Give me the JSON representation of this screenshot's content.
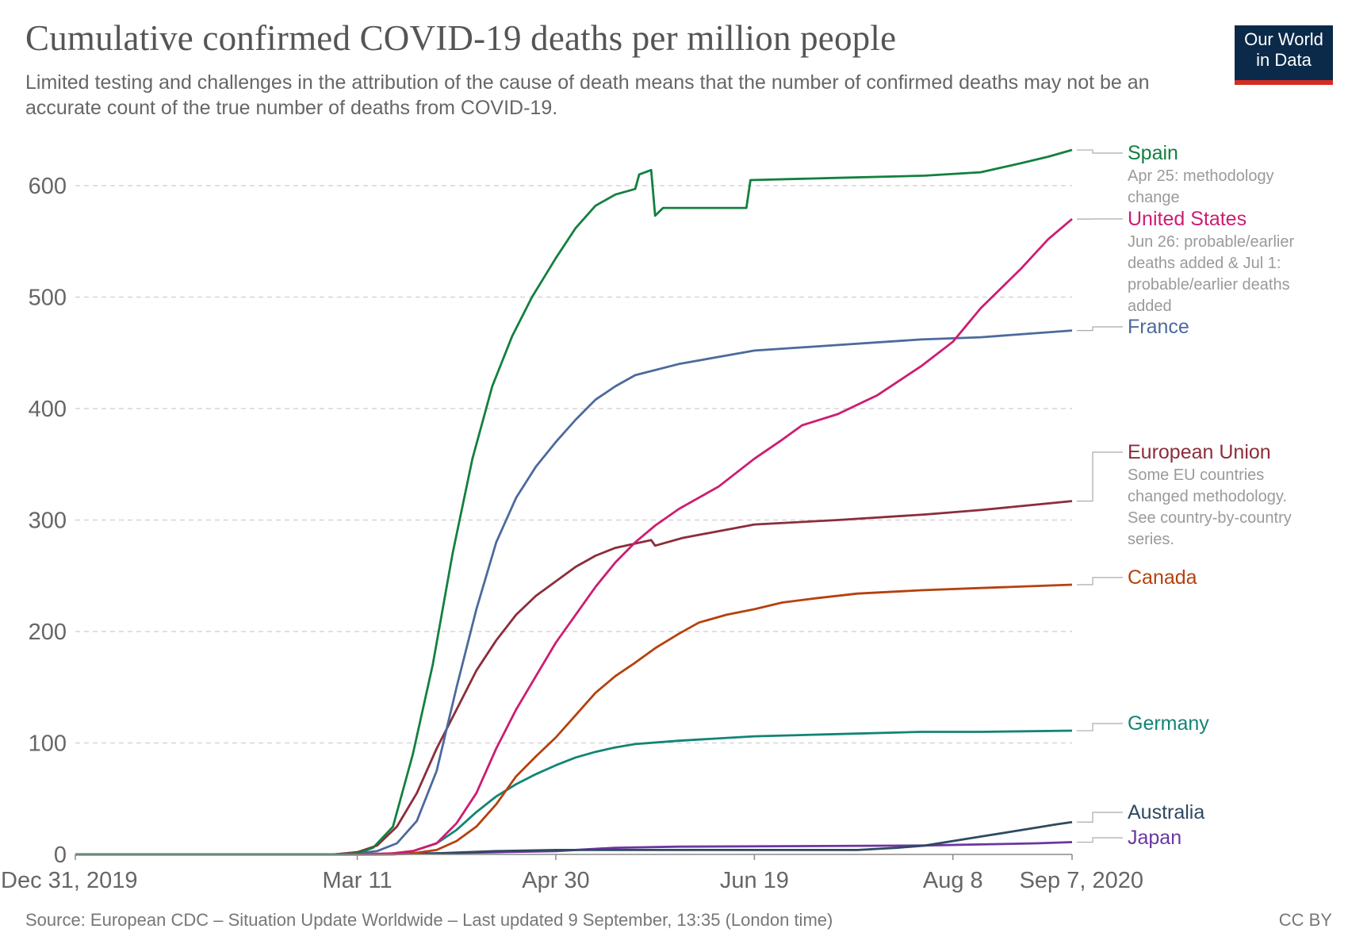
{
  "title": "Cumulative confirmed COVID-19 deaths per million people",
  "subtitle": "Limited testing and challenges in the attribution of the cause of death means that the number of confirmed deaths may not be an accurate count of the true number of deaths from COVID-19.",
  "logo": {
    "line1": "Our World",
    "line2": "in Data",
    "bg": "#0b2a4a",
    "accent": "#d42b21"
  },
  "footer": {
    "source": "Source: European CDC – Situation Update Worldwide – Last updated 9 September, 13:35 (London time)",
    "license": "CC BY"
  },
  "chart_data": {
    "type": "line",
    "title": "Cumulative confirmed COVID-19 deaths per million people",
    "xlabel": "",
    "ylabel": "",
    "x_range": [
      "2019-12-31",
      "2020-09-07"
    ],
    "ylim": [
      0,
      630
    ],
    "y_ticks": [
      0,
      100,
      200,
      300,
      400,
      500,
      600
    ],
    "x_ticks": [
      {
        "date": "2019-12-31",
        "label": "Dec 31, 2019"
      },
      {
        "date": "2020-03-11",
        "label": "Mar 11"
      },
      {
        "date": "2020-04-30",
        "label": "Apr 30"
      },
      {
        "date": "2020-06-19",
        "label": "Jun 19"
      },
      {
        "date": "2020-08-08",
        "label": "Aug 8"
      },
      {
        "date": "2020-09-07",
        "label": "Sep 7, 2020"
      }
    ],
    "grid": "horizontal dashed",
    "legend": "right, labels at line ends",
    "series": [
      {
        "name": "Spain",
        "color": "#13803f",
        "note": "Apr 25: methodology change",
        "points": [
          [
            "2019-12-31",
            0
          ],
          [
            "2020-03-08",
            0
          ],
          [
            "2020-03-11",
            1
          ],
          [
            "2020-03-15",
            6
          ],
          [
            "2020-03-20",
            25
          ],
          [
            "2020-03-25",
            90
          ],
          [
            "2020-03-30",
            170
          ],
          [
            "2020-04-04",
            270
          ],
          [
            "2020-04-09",
            355
          ],
          [
            "2020-04-14",
            420
          ],
          [
            "2020-04-19",
            465
          ],
          [
            "2020-04-24",
            500
          ],
          [
            "2020-04-30",
            535
          ],
          [
            "2020-05-05",
            562
          ],
          [
            "2020-05-10",
            582
          ],
          [
            "2020-05-15",
            592
          ],
          [
            "2020-05-20",
            597
          ],
          [
            "2020-05-21",
            610
          ],
          [
            "2020-05-24",
            614
          ],
          [
            "2020-05-25",
            573
          ],
          [
            "2020-05-27",
            580
          ],
          [
            "2020-06-17",
            580
          ],
          [
            "2020-06-18",
            605
          ],
          [
            "2020-07-10",
            607
          ],
          [
            "2020-08-01",
            609
          ],
          [
            "2020-08-15",
            612
          ],
          [
            "2020-08-25",
            620
          ],
          [
            "2020-09-01",
            626
          ],
          [
            "2020-09-07",
            632
          ]
        ]
      },
      {
        "name": "United States",
        "color": "#cc1d72",
        "note": "Jun 26: probable/earlier deaths added & Jul 1: probable/earlier deaths added",
        "points": [
          [
            "2019-12-31",
            0
          ],
          [
            "2020-03-01",
            0
          ],
          [
            "2020-03-11",
            0
          ],
          [
            "2020-03-20",
            1
          ],
          [
            "2020-03-25",
            3
          ],
          [
            "2020-03-31",
            10
          ],
          [
            "2020-04-05",
            28
          ],
          [
            "2020-04-10",
            55
          ],
          [
            "2020-04-15",
            95
          ],
          [
            "2020-04-20",
            130
          ],
          [
            "2020-04-25",
            160
          ],
          [
            "2020-04-30",
            190
          ],
          [
            "2020-05-05",
            215
          ],
          [
            "2020-05-10",
            240
          ],
          [
            "2020-05-15",
            262
          ],
          [
            "2020-05-20",
            280
          ],
          [
            "2020-05-25",
            295
          ],
          [
            "2020-05-31",
            310
          ],
          [
            "2020-06-10",
            330
          ],
          [
            "2020-06-19",
            355
          ],
          [
            "2020-06-26",
            372
          ],
          [
            "2020-07-01",
            385
          ],
          [
            "2020-07-10",
            395
          ],
          [
            "2020-07-20",
            412
          ],
          [
            "2020-07-31",
            438
          ],
          [
            "2020-08-08",
            460
          ],
          [
            "2020-08-15",
            490
          ],
          [
            "2020-08-25",
            525
          ],
          [
            "2020-09-01",
            552
          ],
          [
            "2020-09-07",
            570
          ]
        ]
      },
      {
        "name": "France",
        "color": "#4c6a9c",
        "points": [
          [
            "2019-12-31",
            0
          ],
          [
            "2020-03-05",
            0
          ],
          [
            "2020-03-11",
            1
          ],
          [
            "2020-03-16",
            3
          ],
          [
            "2020-03-21",
            10
          ],
          [
            "2020-03-26",
            30
          ],
          [
            "2020-03-31",
            75
          ],
          [
            "2020-04-05",
            150
          ],
          [
            "2020-04-10",
            220
          ],
          [
            "2020-04-15",
            280
          ],
          [
            "2020-04-20",
            320
          ],
          [
            "2020-04-25",
            348
          ],
          [
            "2020-04-30",
            370
          ],
          [
            "2020-05-05",
            390
          ],
          [
            "2020-05-10",
            408
          ],
          [
            "2020-05-15",
            420
          ],
          [
            "2020-05-20",
            430
          ],
          [
            "2020-05-31",
            440
          ],
          [
            "2020-06-19",
            452
          ],
          [
            "2020-07-10",
            457
          ],
          [
            "2020-07-31",
            462
          ],
          [
            "2020-08-15",
            464
          ],
          [
            "2020-09-07",
            470
          ]
        ]
      },
      {
        "name": "European Union",
        "color": "#8c2d3a",
        "note": "Some EU countries changed methodology. See country-by-country series.",
        "points": [
          [
            "2019-12-31",
            0
          ],
          [
            "2020-03-05",
            0
          ],
          [
            "2020-03-11",
            2
          ],
          [
            "2020-03-16",
            8
          ],
          [
            "2020-03-21",
            25
          ],
          [
            "2020-03-26",
            55
          ],
          [
            "2020-03-31",
            95
          ],
          [
            "2020-04-05",
            130
          ],
          [
            "2020-04-10",
            165
          ],
          [
            "2020-04-15",
            192
          ],
          [
            "2020-04-20",
            215
          ],
          [
            "2020-04-25",
            232
          ],
          [
            "2020-04-30",
            245
          ],
          [
            "2020-05-05",
            258
          ],
          [
            "2020-05-10",
            268
          ],
          [
            "2020-05-15",
            275
          ],
          [
            "2020-05-24",
            282
          ],
          [
            "2020-05-25",
            277
          ],
          [
            "2020-06-01",
            284
          ],
          [
            "2020-06-19",
            296
          ],
          [
            "2020-07-10",
            300
          ],
          [
            "2020-08-01",
            305
          ],
          [
            "2020-08-15",
            309
          ],
          [
            "2020-09-07",
            317
          ]
        ]
      },
      {
        "name": "Canada",
        "color": "#b5410d",
        "points": [
          [
            "2019-12-31",
            0
          ],
          [
            "2020-03-15",
            0
          ],
          [
            "2020-03-20",
            0
          ],
          [
            "2020-03-25",
            1
          ],
          [
            "2020-03-31",
            4
          ],
          [
            "2020-04-05",
            12
          ],
          [
            "2020-04-10",
            25
          ],
          [
            "2020-04-15",
            45
          ],
          [
            "2020-04-20",
            70
          ],
          [
            "2020-04-25",
            88
          ],
          [
            "2020-04-30",
            105
          ],
          [
            "2020-05-05",
            125
          ],
          [
            "2020-05-10",
            145
          ],
          [
            "2020-05-15",
            160
          ],
          [
            "2020-05-20",
            172
          ],
          [
            "2020-05-25",
            185
          ],
          [
            "2020-05-31",
            198
          ],
          [
            "2020-06-05",
            208
          ],
          [
            "2020-06-12",
            215
          ],
          [
            "2020-06-19",
            220
          ],
          [
            "2020-06-26",
            226
          ],
          [
            "2020-07-05",
            230
          ],
          [
            "2020-07-15",
            234
          ],
          [
            "2020-07-31",
            237
          ],
          [
            "2020-08-15",
            239
          ],
          [
            "2020-09-07",
            242
          ]
        ]
      },
      {
        "name": "Germany",
        "color": "#118574",
        "points": [
          [
            "2019-12-31",
            0
          ],
          [
            "2020-03-08",
            0
          ],
          [
            "2020-03-15",
            0
          ],
          [
            "2020-03-20",
            1
          ],
          [
            "2020-03-25",
            3
          ],
          [
            "2020-03-31",
            10
          ],
          [
            "2020-04-05",
            22
          ],
          [
            "2020-04-10",
            38
          ],
          [
            "2020-04-15",
            52
          ],
          [
            "2020-04-20",
            63
          ],
          [
            "2020-04-25",
            72
          ],
          [
            "2020-04-30",
            80
          ],
          [
            "2020-05-05",
            87
          ],
          [
            "2020-05-10",
            92
          ],
          [
            "2020-05-15",
            96
          ],
          [
            "2020-05-20",
            99
          ],
          [
            "2020-05-31",
            102
          ],
          [
            "2020-06-19",
            106
          ],
          [
            "2020-07-10",
            108
          ],
          [
            "2020-07-31",
            110
          ],
          [
            "2020-08-15",
            110
          ],
          [
            "2020-09-07",
            111
          ]
        ]
      },
      {
        "name": "Australia",
        "color": "#2f4961",
        "points": [
          [
            "2019-12-31",
            0
          ],
          [
            "2020-03-01",
            0
          ],
          [
            "2020-03-15",
            0
          ],
          [
            "2020-03-31",
            1
          ],
          [
            "2020-04-15",
            3
          ],
          [
            "2020-04-30",
            4
          ],
          [
            "2020-05-31",
            4
          ],
          [
            "2020-06-30",
            4
          ],
          [
            "2020-07-15",
            4
          ],
          [
            "2020-07-25",
            6
          ],
          [
            "2020-08-01",
            8
          ],
          [
            "2020-08-08",
            12
          ],
          [
            "2020-08-15",
            16
          ],
          [
            "2020-08-22",
            20
          ],
          [
            "2020-08-29",
            24
          ],
          [
            "2020-09-03",
            27
          ],
          [
            "2020-09-07",
            29
          ]
        ]
      },
      {
        "name": "Japan",
        "color": "#6b36a1",
        "points": [
          [
            "2019-12-31",
            0
          ],
          [
            "2020-02-20",
            0
          ],
          [
            "2020-03-11",
            0
          ],
          [
            "2020-03-31",
            1
          ],
          [
            "2020-04-15",
            2
          ],
          [
            "2020-04-30",
            3
          ],
          [
            "2020-05-15",
            6
          ],
          [
            "2020-05-31",
            7
          ],
          [
            "2020-07-31",
            8
          ],
          [
            "2020-08-15",
            9
          ],
          [
            "2020-08-29",
            10
          ],
          [
            "2020-09-07",
            11
          ]
        ]
      }
    ]
  }
}
